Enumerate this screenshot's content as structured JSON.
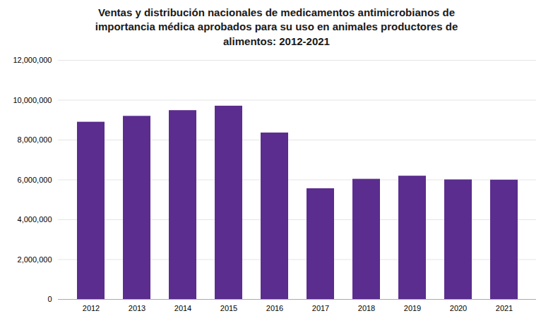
{
  "chart_data": {
    "type": "bar",
    "title": "Ventas y distribución nacionales de medicamentos antimicrobianos de\nimportancia médica aprobados para su uso en animales productores de\nalimentos: 2012-2021",
    "categories": [
      "2012",
      "2013",
      "2014",
      "2015",
      "2016",
      "2017",
      "2018",
      "2019",
      "2020",
      "2021"
    ],
    "values": [
      8897420,
      9193293,
      9479339,
      9702943,
      8356340,
      5559212,
      6032298,
      6189260,
      6002056,
      5989721
    ],
    "color": "#5b2d8e",
    "ylim": [
      0,
      12000000
    ],
    "yticks": [
      0,
      {
        "value": 2000000,
        "label": "2,000,000"
      },
      {
        "value": 4000000,
        "label": "4,000,000"
      },
      {
        "value": 6000000,
        "label": "6,000,000"
      },
      {
        "value": 8000000,
        "label": "8,000,000"
      },
      {
        "value": 10000000,
        "label": "10,000,000"
      },
      {
        "value": 12000000,
        "label": "12,000,000"
      }
    ],
    "grid": true
  }
}
